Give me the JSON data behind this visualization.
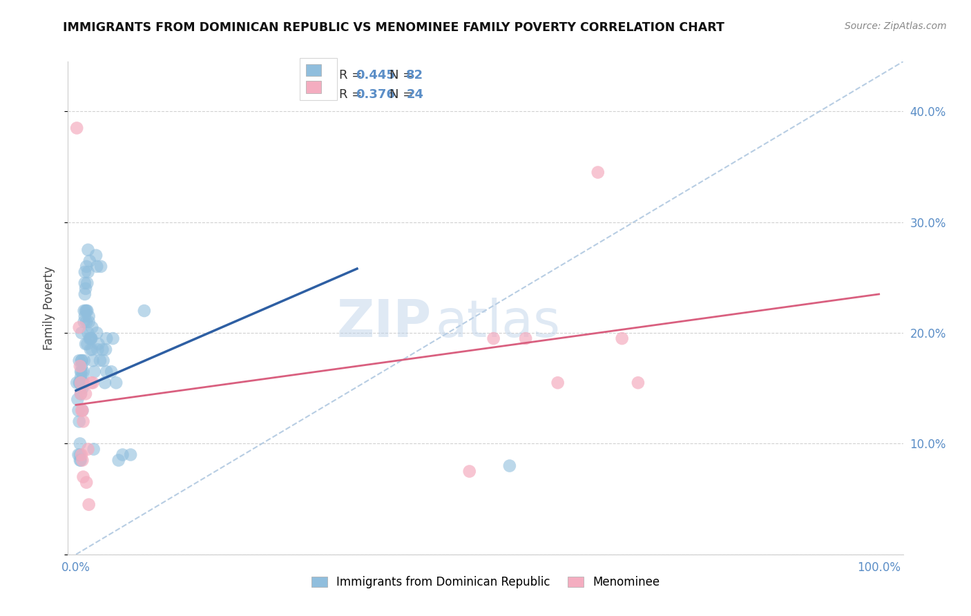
{
  "title": "IMMIGRANTS FROM DOMINICAN REPUBLIC VS MENOMINEE FAMILY POVERTY CORRELATION CHART",
  "source": "Source: ZipAtlas.com",
  "ylabel": "Family Poverty",
  "x_ticks": [
    0.0,
    0.2,
    0.4,
    0.6,
    0.8,
    1.0
  ],
  "x_tick_labels": [
    "0.0%",
    "",
    "",
    "",
    "",
    "100.0%"
  ],
  "y_ticks": [
    0.0,
    0.1,
    0.2,
    0.3,
    0.4
  ],
  "y_tick_labels": [
    "",
    "10.0%",
    "20.0%",
    "30.0%",
    "40.0%"
  ],
  "xlim": [
    -0.01,
    1.03
  ],
  "ylim": [
    0.0,
    0.445
  ],
  "legend_blue_label_R": "R = ",
  "legend_blue_R": "0.445",
  "legend_blue_label_N": "  N = ",
  "legend_blue_N": "82",
  "legend_pink_label_R": "R = ",
  "legend_pink_R": "0.376",
  "legend_pink_label_N": "  N = ",
  "legend_pink_N": "24",
  "blue_color": "#90bedd",
  "pink_color": "#f4adc0",
  "blue_line_color": "#2e5fa3",
  "pink_line_color": "#d95f7f",
  "diag_line_color": "#b0c8e0",
  "watermark_zip": "ZIP",
  "watermark_atlas": "atlas",
  "blue_points": [
    [
      0.001,
      0.155
    ],
    [
      0.002,
      0.14
    ],
    [
      0.003,
      0.13
    ],
    [
      0.003,
      0.09
    ],
    [
      0.004,
      0.12
    ],
    [
      0.004,
      0.155
    ],
    [
      0.004,
      0.175
    ],
    [
      0.005,
      0.1
    ],
    [
      0.005,
      0.09
    ],
    [
      0.005,
      0.085
    ],
    [
      0.005,
      0.155
    ],
    [
      0.006,
      0.16
    ],
    [
      0.006,
      0.165
    ],
    [
      0.006,
      0.155
    ],
    [
      0.006,
      0.145
    ],
    [
      0.006,
      0.085
    ],
    [
      0.007,
      0.2
    ],
    [
      0.007,
      0.175
    ],
    [
      0.007,
      0.17
    ],
    [
      0.007,
      0.165
    ],
    [
      0.007,
      0.155
    ],
    [
      0.007,
      0.175
    ],
    [
      0.008,
      0.155
    ],
    [
      0.008,
      0.13
    ],
    [
      0.008,
      0.155
    ],
    [
      0.008,
      0.15
    ],
    [
      0.009,
      0.165
    ],
    [
      0.009,
      0.16
    ],
    [
      0.009,
      0.155
    ],
    [
      0.01,
      0.22
    ],
    [
      0.01,
      0.21
    ],
    [
      0.01,
      0.175
    ],
    [
      0.011,
      0.255
    ],
    [
      0.011,
      0.245
    ],
    [
      0.011,
      0.235
    ],
    [
      0.011,
      0.215
    ],
    [
      0.012,
      0.24
    ],
    [
      0.012,
      0.22
    ],
    [
      0.012,
      0.19
    ],
    [
      0.013,
      0.26
    ],
    [
      0.013,
      0.22
    ],
    [
      0.013,
      0.21
    ],
    [
      0.014,
      0.19
    ],
    [
      0.014,
      0.245
    ],
    [
      0.014,
      0.22
    ],
    [
      0.015,
      0.2
    ],
    [
      0.015,
      0.275
    ],
    [
      0.015,
      0.255
    ],
    [
      0.016,
      0.21
    ],
    [
      0.016,
      0.215
    ],
    [
      0.017,
      0.195
    ],
    [
      0.017,
      0.265
    ],
    [
      0.018,
      0.195
    ],
    [
      0.018,
      0.185
    ],
    [
      0.019,
      0.195
    ],
    [
      0.019,
      0.195
    ],
    [
      0.02,
      0.205
    ],
    [
      0.02,
      0.185
    ],
    [
      0.021,
      0.175
    ],
    [
      0.022,
      0.095
    ],
    [
      0.023,
      0.165
    ],
    [
      0.025,
      0.27
    ],
    [
      0.026,
      0.26
    ],
    [
      0.026,
      0.2
    ],
    [
      0.027,
      0.185
    ],
    [
      0.028,
      0.19
    ],
    [
      0.03,
      0.175
    ],
    [
      0.031,
      0.26
    ],
    [
      0.033,
      0.185
    ],
    [
      0.034,
      0.175
    ],
    [
      0.036,
      0.155
    ],
    [
      0.037,
      0.185
    ],
    [
      0.038,
      0.165
    ],
    [
      0.038,
      0.195
    ],
    [
      0.044,
      0.165
    ],
    [
      0.046,
      0.195
    ],
    [
      0.05,
      0.155
    ],
    [
      0.053,
      0.085
    ],
    [
      0.058,
      0.09
    ],
    [
      0.068,
      0.09
    ],
    [
      0.085,
      0.22
    ],
    [
      0.54,
      0.08
    ]
  ],
  "pink_points": [
    [
      0.001,
      0.385
    ],
    [
      0.004,
      0.205
    ],
    [
      0.005,
      0.17
    ],
    [
      0.006,
      0.155
    ],
    [
      0.006,
      0.145
    ],
    [
      0.007,
      0.13
    ],
    [
      0.007,
      0.09
    ],
    [
      0.008,
      0.085
    ],
    [
      0.008,
      0.13
    ],
    [
      0.009,
      0.12
    ],
    [
      0.009,
      0.07
    ],
    [
      0.012,
      0.145
    ],
    [
      0.013,
      0.065
    ],
    [
      0.015,
      0.095
    ],
    [
      0.016,
      0.045
    ],
    [
      0.019,
      0.155
    ],
    [
      0.021,
      0.155
    ],
    [
      0.49,
      0.075
    ],
    [
      0.52,
      0.195
    ],
    [
      0.56,
      0.195
    ],
    [
      0.6,
      0.155
    ],
    [
      0.65,
      0.345
    ],
    [
      0.68,
      0.195
    ],
    [
      0.7,
      0.155
    ]
  ],
  "blue_line_x": [
    0.0,
    0.35
  ],
  "blue_line_y": [
    0.148,
    0.258
  ],
  "pink_line_x": [
    0.0,
    1.0
  ],
  "pink_line_y": [
    0.135,
    0.235
  ],
  "diag_line_x": [
    0.0,
    1.03
  ],
  "diag_line_y": [
    0.0,
    0.445
  ]
}
